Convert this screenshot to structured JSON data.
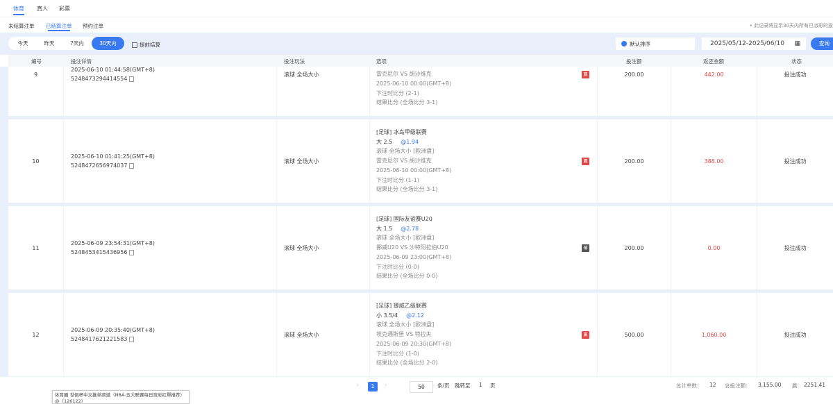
{
  "top_tabs": [
    {
      "label": "体育",
      "active": true
    },
    {
      "label": "真人"
    },
    {
      "label": "彩票"
    }
  ],
  "sub_tabs": [
    {
      "label": "未结算注单"
    },
    {
      "label": "已结算注单",
      "active": true
    },
    {
      "label": "预约注单"
    }
  ],
  "note": "• 此记录将显示30天内所有已派彩的投",
  "filter": {
    "ranges": [
      {
        "label": "今天"
      },
      {
        "label": "昨天"
      },
      {
        "label": "7天内"
      },
      {
        "label": "30天内",
        "active": true
      }
    ],
    "early_settle": "提前结算",
    "sort": "默认排序",
    "date_range": "2025/05/12-2025/06/10",
    "query": "查询"
  },
  "columns": [
    "编号",
    "投注详情",
    "投注玩法",
    "选项",
    "投注额",
    "返还金额",
    "状态"
  ],
  "rows": [
    {
      "no": "9",
      "time": "2025-06-10 01:44:58(GMT+8)",
      "id": "5248473294414554",
      "play": "滚球  全场大小",
      "lines": [
        "雷克尼尔 VS 胡沙维克",
        "2025-06-10 00:00(GMT+8)",
        "下注时比分 (2-1)",
        "结果比分 (全场比分 3-1)"
      ],
      "result": "赢",
      "amount": "200.00",
      "return": "442.00",
      "status": "投注成功"
    },
    {
      "no": "10",
      "time": "2025-06-10 01:41:25(GMT+8)",
      "id": "5248472656974037",
      "play": "滚球  全场大小",
      "league": "[足球] 冰岛甲级联赛",
      "pick": "大 2.5",
      "odds": "@1.94",
      "lines": [
        "滚球  全场大小 [欧洲盘]",
        "雷克尼尔 VS 胡沙维克",
        "2025-06-10 00:00(GMT+8)",
        "下注时比分 (1-1)",
        "结果比分 (全场比分 3-1)"
      ],
      "result": "赢",
      "amount": "200.00",
      "return": "388.00",
      "status": "投注成功"
    },
    {
      "no": "11",
      "time": "2025-06-09 23:54:31(GMT+8)",
      "id": "5248453415436956",
      "play": "滚球  全场大小",
      "league": "[足球] 国际友谊赛U20",
      "pick": "大 1.5",
      "odds": "@2.78",
      "lines": [
        "滚球  全场大小 [欧洲盘]",
        "挪威U20 VS 沙特阿拉伯U20",
        "2025-06-09 23:00(GMT+8)",
        "下注时比分 (0-0)",
        "结果比分 (全场比分 0-0)"
      ],
      "result": "输",
      "amount": "200.00",
      "return": "0.00",
      "status": "投注成功"
    },
    {
      "no": "12",
      "time": "2025-06-09 20:35:40(GMT+8)",
      "id": "5248417621221583",
      "play": "滚球  全场大小",
      "league": "[足球] 挪威乙级联赛",
      "pick": "小 3.5/4",
      "odds": "@2.12",
      "lines": [
        "滚球  全场大小 [欧洲盘]",
        "埃克通斯堡 VS 特拉夫",
        "2025-06-09 20:30(GMT+8)",
        "下注时比分 (1-0)",
        "结果比分 (全场比分 2-0)"
      ],
      "result": "赢",
      "amount": "500.00",
      "return": "1,060.00",
      "status": "投注成功"
    }
  ],
  "colors": {
    "win": "#e04848",
    "lose": "#555555",
    "accent": "#3a7af0"
  },
  "footer": {
    "page": "1",
    "page_size": "50",
    "per_page": "条/页",
    "jump": "跳转至",
    "jump_page": "1",
    "jump_unit": "页",
    "total_label": "总计单数:",
    "total": "12",
    "stake_label": "总投注额:",
    "stake": "3,155.00",
    "win_label": "赢:",
    "win": "2251.41"
  },
  "tooltip": "体育圈 世俱杯中文推单频道（NBA-五大联赛每日竞彩红單推荐）@（126122）"
}
